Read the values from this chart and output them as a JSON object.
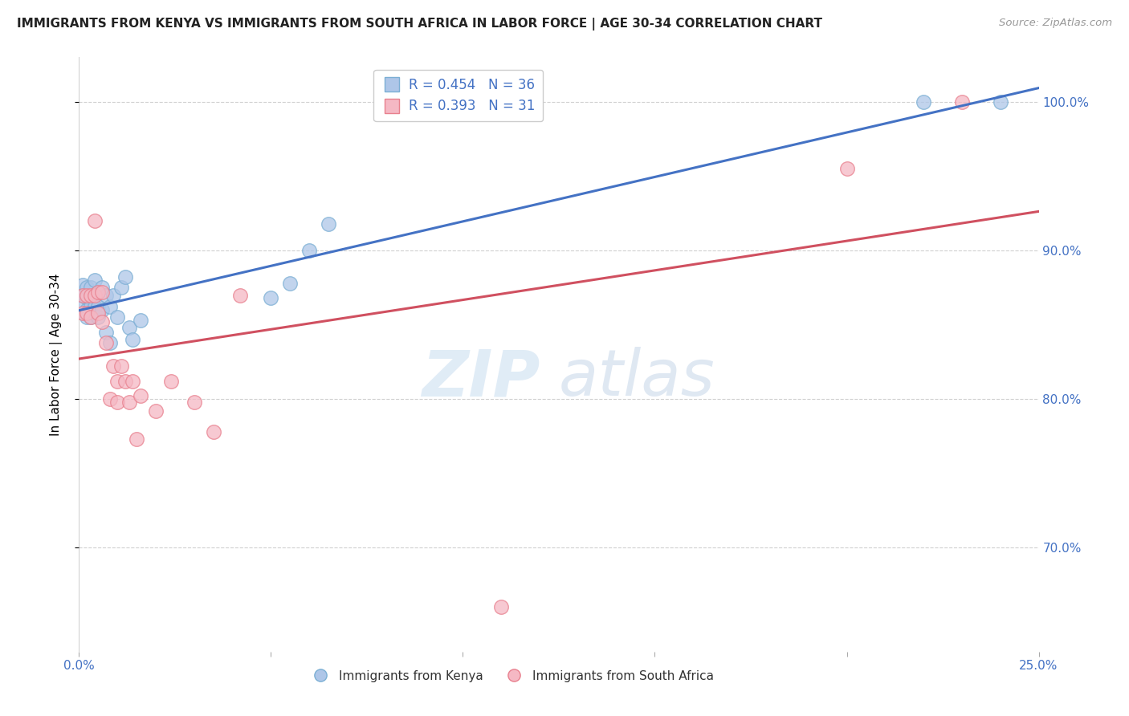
{
  "title": "IMMIGRANTS FROM KENYA VS IMMIGRANTS FROM SOUTH AFRICA IN LABOR FORCE | AGE 30-34 CORRELATION CHART",
  "source": "Source: ZipAtlas.com",
  "ylabel": "In Labor Force | Age 30-34",
  "xlim": [
    0.0,
    0.25
  ],
  "ylim": [
    0.63,
    1.03
  ],
  "xticks": [
    0.0,
    0.05,
    0.1,
    0.15,
    0.2,
    0.25
  ],
  "xtick_labels": [
    "0.0%",
    "",
    "",
    "",
    "",
    "25.0%"
  ],
  "ytick_positions": [
    0.7,
    0.8,
    0.9,
    1.0
  ],
  "ytick_labels": [
    "70.0%",
    "80.0%",
    "90.0%",
    "100.0%"
  ],
  "kenya_color": "#aec6e8",
  "kenya_edge": "#7bafd4",
  "sa_color": "#f5b8c4",
  "sa_edge": "#e8808e",
  "kenya_line_color": "#4472c4",
  "sa_line_color": "#d05060",
  "kenya_R": 0.454,
  "kenya_N": 36,
  "sa_R": 0.393,
  "sa_N": 31,
  "watermark_zip": "ZIP",
  "watermark_atlas": "atlas",
  "legend_kenya": "Immigrants from Kenya",
  "legend_sa": "Immigrants from South Africa",
  "kenya_x": [
    0.001,
    0.001,
    0.001,
    0.002,
    0.002,
    0.002,
    0.002,
    0.003,
    0.003,
    0.003,
    0.003,
    0.004,
    0.004,
    0.004,
    0.005,
    0.005,
    0.005,
    0.006,
    0.006,
    0.007,
    0.007,
    0.008,
    0.008,
    0.009,
    0.01,
    0.011,
    0.012,
    0.013,
    0.014,
    0.016,
    0.05,
    0.055,
    0.06,
    0.065,
    0.22,
    0.24
  ],
  "kenya_y": [
    0.877,
    0.87,
    0.863,
    0.875,
    0.868,
    0.86,
    0.855,
    0.875,
    0.868,
    0.862,
    0.855,
    0.88,
    0.87,
    0.862,
    0.872,
    0.862,
    0.855,
    0.875,
    0.86,
    0.87,
    0.845,
    0.862,
    0.838,
    0.87,
    0.855,
    0.875,
    0.882,
    0.848,
    0.84,
    0.853,
    0.868,
    0.878,
    0.9,
    0.918,
    1.0,
    1.0
  ],
  "sa_x": [
    0.001,
    0.001,
    0.002,
    0.002,
    0.003,
    0.003,
    0.004,
    0.004,
    0.005,
    0.005,
    0.006,
    0.006,
    0.007,
    0.008,
    0.009,
    0.01,
    0.01,
    0.011,
    0.012,
    0.013,
    0.014,
    0.015,
    0.016,
    0.02,
    0.024,
    0.03,
    0.035,
    0.042,
    0.11,
    0.2,
    0.23
  ],
  "sa_y": [
    0.87,
    0.858,
    0.87,
    0.858,
    0.87,
    0.855,
    0.92,
    0.87,
    0.872,
    0.858,
    0.872,
    0.852,
    0.838,
    0.8,
    0.822,
    0.812,
    0.798,
    0.822,
    0.812,
    0.798,
    0.812,
    0.773,
    0.802,
    0.792,
    0.812,
    0.798,
    0.778,
    0.87,
    0.66,
    0.955,
    1.0
  ]
}
